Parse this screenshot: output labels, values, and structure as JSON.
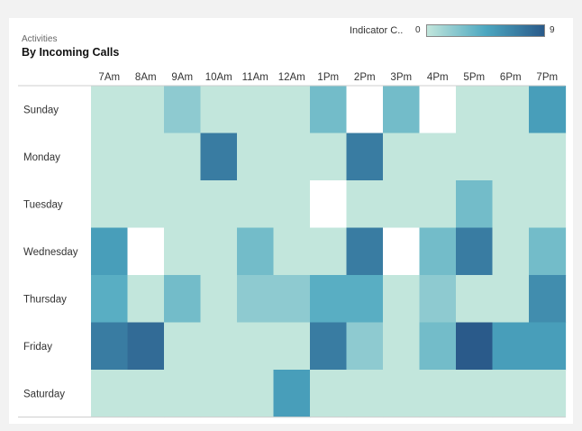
{
  "chart_data": {
    "type": "heatmap",
    "subtitle": "Activities",
    "title": "By Incoming Calls",
    "legend": {
      "label": "Indicator C..",
      "min": "0",
      "max": "9",
      "placement": "top-right"
    },
    "x": [
      "7Am",
      "8Am",
      "9Am",
      "10Am",
      "11Am",
      "12Am",
      "1Pm",
      "2Pm",
      "3Pm",
      "4Pm",
      "5Pm",
      "6Pm",
      "7Pm"
    ],
    "y": [
      "Sunday",
      "Monday",
      "Tuesday",
      "Wednesday",
      "Thursday",
      "Friday",
      "Saturday"
    ],
    "values": [
      [
        0,
        0,
        2,
        0,
        0,
        0,
        3,
        null,
        3,
        null,
        0,
        0,
        5
      ],
      [
        0,
        0,
        0,
        7,
        0,
        0,
        0,
        7,
        0,
        0,
        0,
        0,
        0
      ],
      [
        0,
        0,
        0,
        0,
        0,
        0,
        null,
        0,
        0,
        0,
        3,
        0,
        0
      ],
      [
        5,
        null,
        0,
        0,
        3,
        0,
        0,
        7,
        null,
        3,
        7,
        0,
        3
      ],
      [
        4,
        0,
        3,
        0,
        2,
        2,
        4,
        4,
        0,
        2,
        0,
        0,
        6
      ],
      [
        7,
        8,
        0,
        0,
        0,
        0,
        7,
        2,
        0,
        3,
        9,
        5,
        5
      ],
      [
        0,
        0,
        0,
        0,
        0,
        5,
        0,
        0,
        0,
        0,
        0,
        0,
        0
      ]
    ],
    "color_scale": [
      "#c2e6dc",
      "#4ca7c0",
      "#2a5a8a"
    ],
    "missing_color": "#ffffff",
    "grid": false
  }
}
